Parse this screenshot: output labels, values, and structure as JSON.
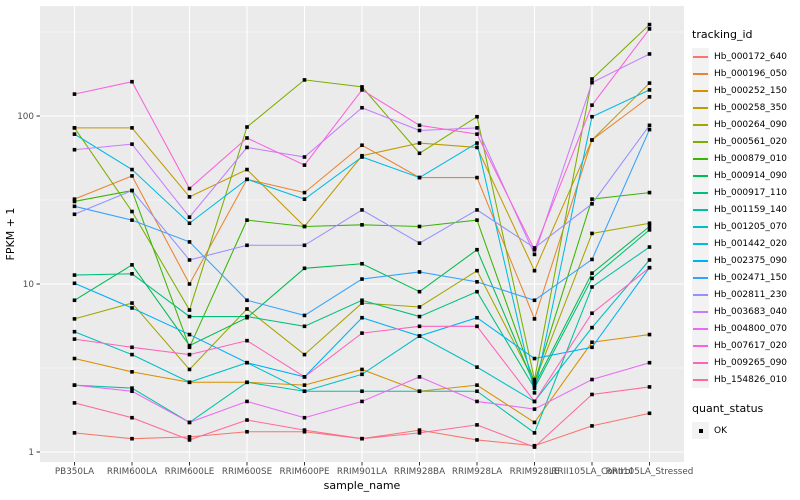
{
  "chart_data": {
    "type": "line",
    "title": "",
    "xlabel": "sample_name",
    "ylabel": "FPKM + 1",
    "y_scale": "log10",
    "y_ticks": [
      1,
      10,
      100
    ],
    "y_minor_ticks": [
      3.162,
      31.62,
      316.2
    ],
    "ylim": [
      1,
      450
    ],
    "grid": true,
    "legend_position": "right",
    "categories": [
      "PB350LA",
      "RRIM600LA",
      "RRIM600LE",
      "RRIM600SE",
      "RRIM600PE",
      "RRIM901LA",
      "RRIM928BA",
      "RRIM928LA",
      "RRIM928LE",
      "RRII105LA_Control",
      "RRII105LA_Stressed"
    ],
    "legend_title": "tracking_id",
    "quant_legend": {
      "title": "quant_status",
      "items": [
        {
          "label": "OK",
          "marker": "black-square"
        }
      ]
    },
    "theme": {
      "panel_bg": "#EBEBEB",
      "grid_color": "#FFFFFF",
      "axis_text_color": "#4D4D4D",
      "tick_color": "#333333",
      "point_color": "#000000",
      "background": "#FFFFFF"
    },
    "series": [
      {
        "name": "Hb_000172_640",
        "color": "#F8766D",
        "values": [
          1.3,
          1.2,
          1.23,
          1.32,
          1.32,
          1.2,
          1.35,
          1.18,
          1.09,
          1.43,
          1.7
        ]
      },
      {
        "name": "Hb_000196_050",
        "color": "#EA8331",
        "values": [
          32,
          44,
          10,
          42,
          35,
          67,
          43,
          43,
          6.2,
          72,
          130
        ]
      },
      {
        "name": "Hb_000252_150",
        "color": "#D89000",
        "values": [
          3.6,
          3.0,
          2.6,
          2.6,
          2.5,
          3.1,
          2.3,
          2.5,
          1.5,
          4.5,
          5.0
        ]
      },
      {
        "name": "Hb_000258_350",
        "color": "#C09B00",
        "values": [
          85,
          85,
          33,
          48,
          22,
          58,
          69,
          65,
          12,
          72,
          157
        ]
      },
      {
        "name": "Hb_000264_090",
        "color": "#A3A500",
        "values": [
          6.2,
          7.7,
          3.1,
          7.1,
          3.8,
          7.7,
          7.3,
          12,
          2.6,
          20,
          23
        ]
      },
      {
        "name": "Hb_000561_020",
        "color": "#7CAE00",
        "values": [
          85,
          27,
          7.0,
          86,
          164,
          149,
          60,
          99,
          2.7,
          166,
          350
        ]
      },
      {
        "name": "Hb_000879_010",
        "color": "#39B600",
        "values": [
          31,
          36,
          4.2,
          24,
          22,
          22.5,
          22,
          24,
          2.6,
          32,
          35
        ]
      },
      {
        "name": "Hb_000914_090",
        "color": "#00BB4E",
        "values": [
          8.0,
          13,
          4.3,
          6.3,
          12.4,
          13.2,
          9.0,
          16,
          2.5,
          11.6,
          22
        ]
      },
      {
        "name": "Hb_000917_110",
        "color": "#00BF7D",
        "values": [
          11.3,
          11.5,
          6.4,
          6.4,
          5.6,
          8.0,
          6.4,
          9.0,
          2.4,
          10.8,
          21
        ]
      },
      {
        "name": "Hb_001159_140",
        "color": "#00C1A3",
        "values": [
          2.5,
          2.4,
          1.5,
          2.6,
          2.3,
          2.3,
          2.3,
          2.3,
          1.3,
          9.6,
          16.6
        ]
      },
      {
        "name": "Hb_001205_070",
        "color": "#00BFC4",
        "values": [
          5.2,
          3.8,
          2.6,
          3.4,
          2.3,
          2.9,
          4.9,
          3.2,
          2.0,
          5.5,
          13.9
        ]
      },
      {
        "name": "Hb_001442_020",
        "color": "#00BAE0",
        "values": [
          78,
          48,
          23,
          42,
          32,
          57,
          43,
          69,
          2.25,
          99,
          143
        ]
      },
      {
        "name": "Hb_002375_090",
        "color": "#00B0F6",
        "values": [
          10.1,
          7.2,
          5.0,
          3.4,
          2.8,
          6.3,
          4.9,
          6.3,
          3.6,
          4.2,
          12.5
        ]
      },
      {
        "name": "Hb_002471_150",
        "color": "#35A2FF",
        "values": [
          29,
          24,
          17.8,
          8.0,
          6.5,
          10.7,
          11.8,
          10.3,
          8.0,
          14,
          83
        ]
      },
      {
        "name": "Hb_002811_230",
        "color": "#9590FF",
        "values": [
          26,
          36,
          13.9,
          17,
          17,
          27.6,
          17.5,
          27.6,
          16.4,
          30,
          88
        ]
      },
      {
        "name": "Hb_003683_040",
        "color": "#C77CFF",
        "values": [
          63,
          68,
          25,
          65,
          57,
          112,
          82,
          85,
          15,
          158,
          234
        ]
      },
      {
        "name": "Hb_004800_070",
        "color": "#E76BF3",
        "values": [
          2.5,
          2.3,
          1.5,
          2.0,
          1.6,
          2.0,
          2.8,
          2.0,
          1.8,
          2.7,
          3.4
        ]
      },
      {
        "name": "Hb_007617_020",
        "color": "#FA62DB",
        "values": [
          135,
          160,
          37,
          74,
          51,
          143,
          88,
          78,
          16,
          116,
          330
        ]
      },
      {
        "name": "Hb_009265_090",
        "color": "#FF62BC",
        "values": [
          4.7,
          4.2,
          3.8,
          4.6,
          2.8,
          5.1,
          5.6,
          5.6,
          2.0,
          6.7,
          12.5
        ]
      },
      {
        "name": "Hb_154826_010",
        "color": "#FF6A98",
        "values": [
          1.96,
          1.6,
          1.18,
          1.55,
          1.35,
          1.2,
          1.3,
          1.45,
          1.07,
          2.2,
          2.44
        ]
      }
    ]
  }
}
